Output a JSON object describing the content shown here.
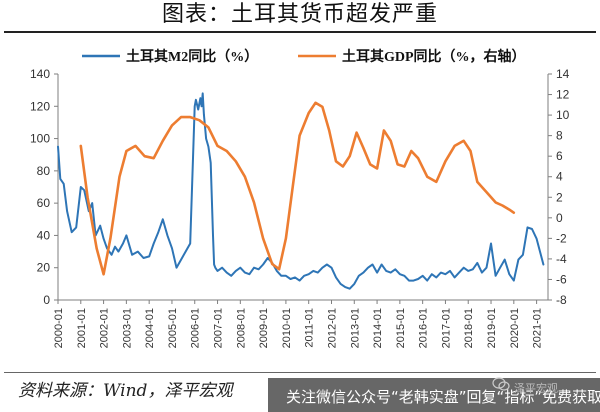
{
  "header": {
    "title": "图表：土耳其货币超发严重"
  },
  "footer": {
    "source": "资料来源：Wind，泽平宏观",
    "banner": "关注微信公众号“老韩实盘”回复“指标”免费获取",
    "watermark": "泽平宏观"
  },
  "colors": {
    "m2": "#2E75B6",
    "gdp": "#ED7D31",
    "axis": "#7f7f7f"
  },
  "chart_data": {
    "type": "line",
    "title": "",
    "xlabel": "",
    "ylabel": "",
    "x_ticks": [
      "2000-01",
      "2001-01",
      "2002-01",
      "2003-01",
      "2004-01",
      "2005-01",
      "2006-01",
      "2007-01",
      "2008-01",
      "2009-01",
      "2010-01",
      "2011-01",
      "2012-01",
      "2013-01",
      "2014-01",
      "2015-01",
      "2016-01",
      "2017-01",
      "2018-01",
      "2019-01",
      "2020-01",
      "2021-01"
    ],
    "xlim": [
      2000.0,
      2021.5
    ],
    "y_left": {
      "lim": [
        0,
        140
      ],
      "ticks": [
        0,
        20,
        40,
        60,
        80,
        100,
        120,
        140
      ]
    },
    "y_right": {
      "lim": [
        -8,
        14
      ],
      "ticks": [
        -8,
        -6,
        -4,
        -2,
        0,
        2,
        4,
        6,
        8,
        10,
        12,
        14
      ]
    },
    "legend": {
      "position": "top"
    },
    "series": [
      {
        "name": "土耳其M2同比（%）",
        "axis": "left",
        "x": [
          2000.0,
          2000.1,
          2000.25,
          2000.4,
          2000.6,
          2000.8,
          2001.0,
          2001.15,
          2001.35,
          2001.5,
          2001.65,
          2001.85,
          2002.0,
          2002.15,
          2002.35,
          2002.5,
          2002.65,
          2002.85,
          2003.0,
          2003.25,
          2003.5,
          2003.75,
          2004.0,
          2004.2,
          2004.4,
          2004.6,
          2004.8,
          2005.0,
          2005.2,
          2005.4,
          2005.6,
          2005.8,
          2006.0,
          2006.05,
          2006.15,
          2006.25,
          2006.3,
          2006.35,
          2006.4,
          2006.5,
          2006.6,
          2006.7,
          2006.8,
          2006.85,
          2006.9,
          2007.0,
          2007.2,
          2007.4,
          2007.6,
          2007.8,
          2008.0,
          2008.2,
          2008.4,
          2008.6,
          2008.8,
          2009.0,
          2009.2,
          2009.4,
          2009.6,
          2009.8,
          2010.0,
          2010.2,
          2010.4,
          2010.6,
          2010.8,
          2011.0,
          2011.2,
          2011.4,
          2011.6,
          2011.8,
          2012.0,
          2012.2,
          2012.4,
          2012.6,
          2012.8,
          2013.0,
          2013.2,
          2013.4,
          2013.6,
          2013.8,
          2014.0,
          2014.2,
          2014.4,
          2014.6,
          2014.8,
          2015.0,
          2015.2,
          2015.4,
          2015.6,
          2015.8,
          2016.0,
          2016.2,
          2016.4,
          2016.6,
          2016.8,
          2017.0,
          2017.2,
          2017.4,
          2017.6,
          2017.8,
          2018.0,
          2018.2,
          2018.4,
          2018.6,
          2018.8,
          2019.0,
          2019.2,
          2019.4,
          2019.6,
          2019.8,
          2020.0,
          2020.2,
          2020.4,
          2020.6,
          2020.8,
          2021.0,
          2021.15,
          2021.3
        ],
        "values": [
          95,
          75,
          72,
          55,
          42,
          45,
          70,
          68,
          55,
          60,
          40,
          46,
          38,
          32,
          28,
          33,
          30,
          35,
          40,
          28,
          30,
          26,
          27,
          35,
          42,
          50,
          40,
          32,
          20,
          25,
          30,
          35,
          120,
          124,
          118,
          125,
          120,
          128,
          115,
          100,
          95,
          85,
          40,
          22,
          20,
          18,
          20,
          17,
          15,
          18,
          20,
          17,
          16,
          20,
          19,
          22,
          26,
          23,
          18,
          15,
          15,
          13,
          14,
          12,
          15,
          16,
          18,
          17,
          20,
          22,
          20,
          14,
          10,
          8,
          7,
          10,
          15,
          17,
          20,
          22,
          17,
          22,
          18,
          17,
          19,
          16,
          15,
          12,
          12,
          13,
          15,
          12,
          16,
          14,
          17,
          16,
          18,
          14,
          17,
          20,
          18,
          19,
          23,
          17,
          20,
          35,
          15,
          20,
          25,
          16,
          12,
          25,
          28,
          45,
          44,
          38,
          30,
          22
        ]
      },
      {
        "name": "土耳其GDP同比（%，右轴）",
        "axis": "right",
        "x": [
          2001.0,
          2001.3,
          2001.7,
          2002.0,
          2002.3,
          2002.7,
          2003.0,
          2003.4,
          2003.8,
          2004.2,
          2004.6,
          2005.0,
          2005.4,
          2005.8,
          2006.2,
          2006.6,
          2007.0,
          2007.4,
          2007.8,
          2008.2,
          2008.6,
          2009.0,
          2009.4,
          2009.7,
          2010.0,
          2010.3,
          2010.6,
          2011.0,
          2011.3,
          2011.6,
          2011.9,
          2012.2,
          2012.5,
          2012.8,
          2013.1,
          2013.4,
          2013.7,
          2014.0,
          2014.3,
          2014.6,
          2014.9,
          2015.2,
          2015.5,
          2015.8,
          2016.2,
          2016.6,
          2017.0,
          2017.4,
          2017.8,
          2018.1,
          2018.4,
          2018.8,
          2019.2,
          2019.5,
          2019.8,
          2020.0
        ],
        "values": [
          7,
          2,
          -3,
          -5.5,
          -2,
          4,
          6.5,
          7,
          6,
          5.8,
          7.5,
          9,
          9.8,
          9.8,
          9.5,
          8.8,
          7,
          6.5,
          5.5,
          4,
          1.5,
          -2,
          -4.5,
          -5,
          -2,
          3,
          8,
          10.2,
          11.2,
          10.8,
          8.5,
          5.5,
          5,
          6,
          8.3,
          6.8,
          5.2,
          4.8,
          8.5,
          7.5,
          5.2,
          5,
          6.5,
          5.8,
          4,
          3.5,
          5.5,
          7,
          7.5,
          6.5,
          3.5,
          2.5,
          1.5,
          1.2,
          0.8,
          0.5
        ]
      }
    ]
  }
}
